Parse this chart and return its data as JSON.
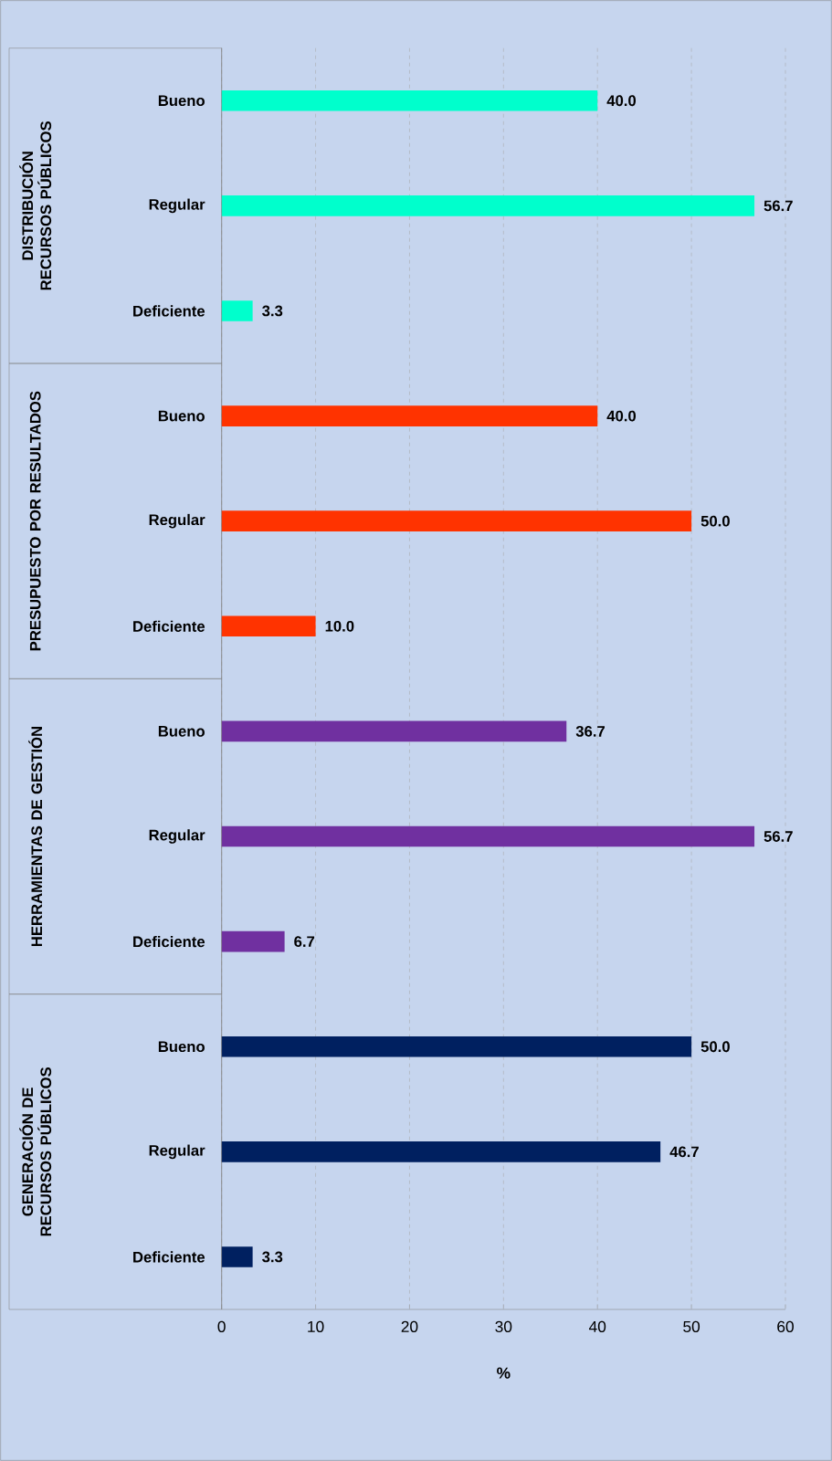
{
  "chart_data": {
    "type": "bar",
    "orientation": "horizontal",
    "xlabel": "%",
    "categories": [
      "Bueno",
      "Regular",
      "Deficiente",
      "Bueno",
      "Regular",
      "Deficiente",
      "Bueno",
      "Regular",
      "Deficiente",
      "Bueno",
      "Regular",
      "Deficiente"
    ],
    "values": [
      40.0,
      56.7,
      3.3,
      40.0,
      50.0,
      10.0,
      36.7,
      56.7,
      6.7,
      50.0,
      46.7,
      3.3
    ],
    "colors": [
      "#00ffcc",
      "#00ffcc",
      "#00ffcc",
      "#ff3300",
      "#ff3300",
      "#ff3300",
      "#7030a0",
      "#7030a0",
      "#7030a0",
      "#002060",
      "#002060",
      "#002060"
    ],
    "annotations": [
      "DISTRIBUCIÓN RECURSOS PÚBLICOS",
      "PRESUPUESTO POR RESULTADOS",
      "HERRAMIENTAS DE GESTIÓN",
      "GENERACIÓN DE RECURSOS PÚBLICOS"
    ],
    "value_labels": [
      "40.0",
      "56.7",
      "3.3",
      "40.0",
      "50.0",
      "10.0",
      "36.7",
      "56.7",
      "6.7",
      "50.0",
      "46.7",
      "3.3"
    ],
    "xlim": [
      0,
      60
    ],
    "xticks": [
      0,
      10,
      20,
      30,
      40,
      50,
      60
    ],
    "grid": "x"
  }
}
